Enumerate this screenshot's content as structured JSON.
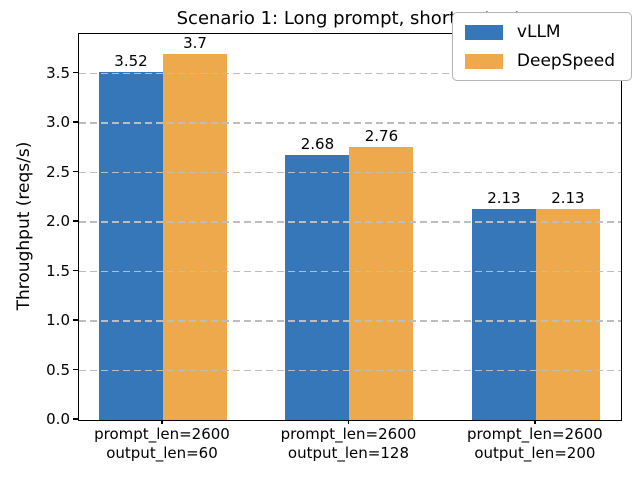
{
  "chart_data": {
    "type": "bar",
    "title": "Scenario 1: Long prompt, short output",
    "xlabel": "",
    "ylabel": "Throughput (reqs/s)",
    "categories": [
      [
        "prompt_len=2600",
        "output_len=60"
      ],
      [
        "prompt_len=2600",
        "output_len=128"
      ],
      [
        "prompt_len=2600",
        "output_len=200"
      ]
    ],
    "series": [
      {
        "name": "vLLM",
        "color": "#3577b8",
        "values": [
          3.52,
          2.68,
          2.13
        ]
      },
      {
        "name": "DeepSpeed",
        "color": "#eda94c",
        "values": [
          3.7,
          2.76,
          2.13
        ]
      }
    ],
    "yticks": [
      0.0,
      0.5,
      1.0,
      1.5,
      2.0,
      2.5,
      3.0,
      3.5
    ],
    "ylim": [
      0,
      3.9
    ],
    "grid": "horizontal dashed",
    "gridline_color": "#bdbdbd",
    "legend_position": "upper right",
    "bar_value_labels_shown": true
  }
}
